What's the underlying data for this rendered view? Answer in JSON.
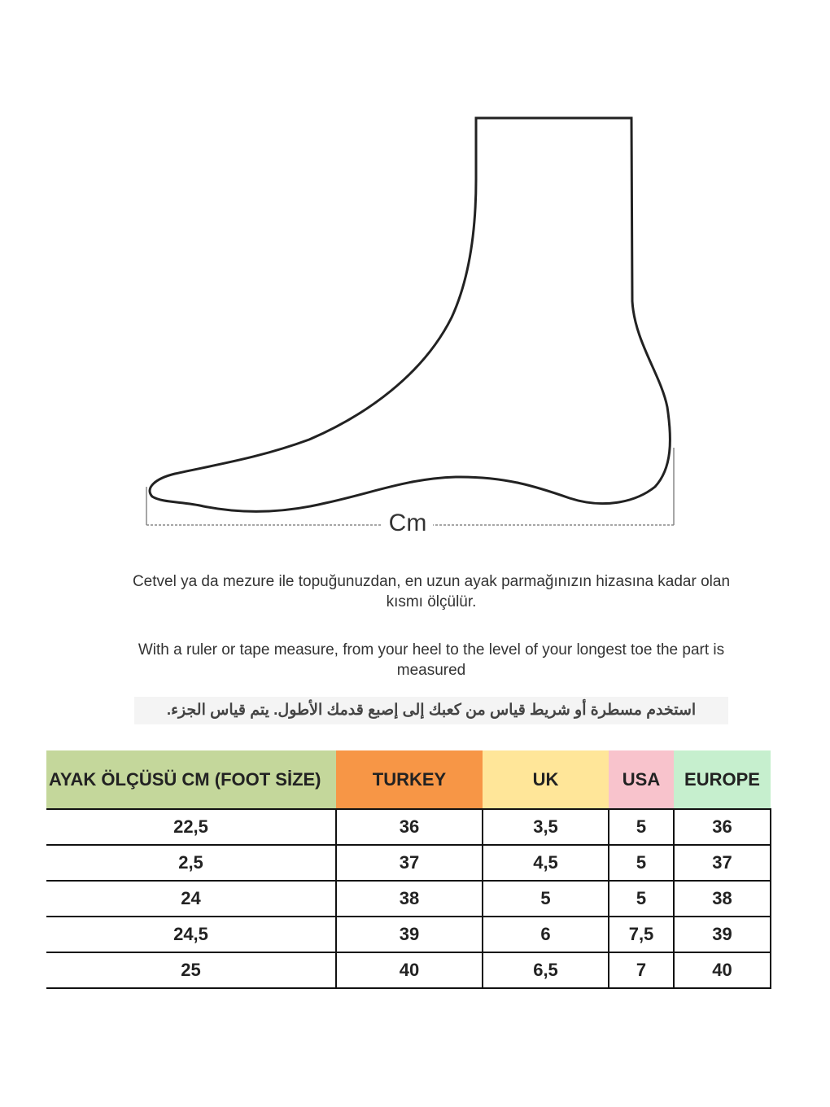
{
  "diagram": {
    "unit_label": "Cm"
  },
  "instructions": {
    "turkish": "Cetvel ya da mezure ile topuğunuzdan, en uzun ayak parmağınızın hizasına kadar olan kısmı ölçülür.",
    "english": "With a ruler or tape measure, from your heel to the level of your longest toe the part is measured",
    "arabic": "استخدم مسطرة أو شريط قياس من كعبك إلى إصبع قدمك الأطول.  يتم قياس الجزء."
  },
  "table": {
    "headers": [
      "AYAK ÖLÇÜSÜ CM (FOOT SİZE)",
      "TURKEY",
      "UK",
      "USA",
      "EUROPE"
    ],
    "header_colors": [
      "#c4d79b",
      "#f79646",
      "#ffe699",
      "#f8c3cc",
      "#c6efce"
    ],
    "rows": [
      [
        "22,5",
        "36",
        "3,5",
        "5",
        "36"
      ],
      [
        "2,5",
        "37",
        "4,5",
        "5",
        "37"
      ],
      [
        "24",
        "38",
        "5",
        "5",
        "38"
      ],
      [
        "24,5",
        "39",
        "6",
        "7,5",
        "39"
      ],
      [
        "25",
        "40",
        "6,5",
        "7",
        "40"
      ]
    ]
  }
}
